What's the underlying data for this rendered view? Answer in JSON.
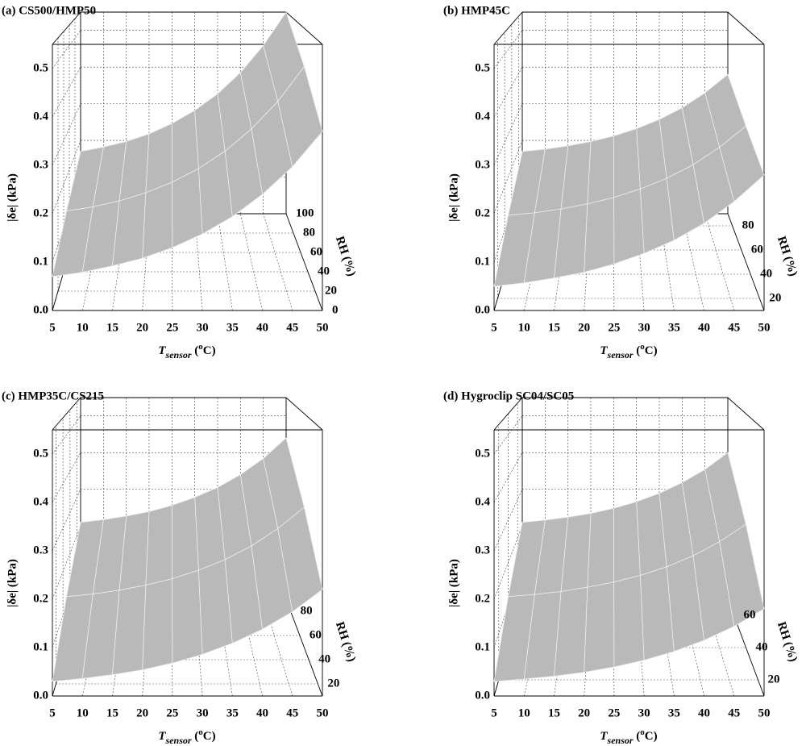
{
  "chart_data": [
    {
      "type": "surface",
      "title": "(a) CS500/HMP50",
      "z_label": "|δe| (kPa)",
      "y_label": "RH (%)",
      "x_label": [
        "T",
        "sensor",
        " (",
        "o",
        "C)"
      ],
      "x": [
        5,
        10,
        15,
        20,
        25,
        30,
        35,
        40,
        45,
        50
      ],
      "xlim": [
        5,
        50
      ],
      "xticks": [
        5,
        10,
        15,
        20,
        25,
        30,
        35,
        40,
        45,
        50
      ],
      "ylim": [
        0,
        100
      ],
      "yticks": [
        0,
        20,
        40,
        60,
        80,
        100
      ],
      "zlim": [
        0,
        0.55
      ],
      "zticks": [
        {
          "value": 0,
          "label": "0.0"
        },
        0.1,
        0.2,
        0.3,
        0.4,
        0.5
      ],
      "color": "#b9b9b9",
      "grid": true,
      "surface": [
        {
          "rh": 0,
          "values": [
            0.07,
            0.079,
            0.092,
            0.108,
            0.13,
            0.158,
            0.194,
            0.24,
            0.297,
            0.37
          ]
        },
        {
          "rh": 50,
          "values": [
            0.12,
            0.13,
            0.144,
            0.163,
            0.188,
            0.22,
            0.261,
            0.313,
            0.378,
            0.46
          ]
        },
        {
          "rh": 100,
          "values": [
            0.17,
            0.182,
            0.197,
            0.218,
            0.246,
            0.282,
            0.327,
            0.385,
            0.459,
            0.55
          ]
        }
      ]
    },
    {
      "type": "surface",
      "title": "(b) HMP45C",
      "z_label": "|δe| (kPa)",
      "y_label": "RH (%)",
      "x_label": [
        "T",
        "sensor",
        " (",
        "o",
        "C)"
      ],
      "x": [
        5,
        10,
        15,
        20,
        25,
        30,
        35,
        40,
        45,
        50
      ],
      "xlim": [
        5,
        50
      ],
      "xticks": [
        5,
        10,
        15,
        20,
        25,
        30,
        35,
        40,
        45,
        50
      ],
      "ylim": [
        10,
        90
      ],
      "yticks": [
        20,
        40,
        60,
        80
      ],
      "zlim": [
        0,
        0.55
      ],
      "zticks": [
        {
          "value": 0,
          "label": "0.0"
        },
        0.1,
        0.2,
        0.3,
        0.4,
        0.5
      ],
      "color": "#b9b9b9",
      "grid": true,
      "surface": [
        {
          "rh": 10,
          "values": [
            0.05,
            0.057,
            0.067,
            0.079,
            0.096,
            0.118,
            0.145,
            0.18,
            0.225,
            0.28
          ]
        },
        {
          "rh": 50,
          "values": [
            0.11,
            0.116,
            0.125,
            0.137,
            0.152,
            0.172,
            0.197,
            0.229,
            0.27,
            0.32
          ]
        },
        {
          "rh": 90,
          "values": [
            0.17,
            0.176,
            0.185,
            0.197,
            0.212,
            0.232,
            0.257,
            0.289,
            0.33,
            0.38
          ]
        }
      ]
    },
    {
      "type": "surface",
      "title": "(c) HMP35C/CS215",
      "z_label": "|δe| (kPa)",
      "y_label": "RH (%)",
      "x_label": [
        "T",
        "sensor",
        " (",
        "o",
        "C)"
      ],
      "x": [
        5,
        10,
        15,
        20,
        25,
        30,
        35,
        40,
        45,
        50
      ],
      "xlim": [
        5,
        50
      ],
      "xticks": [
        5,
        10,
        15,
        20,
        25,
        30,
        35,
        40,
        45,
        50
      ],
      "ylim": [
        10,
        90
      ],
      "yticks": [
        20,
        40,
        60,
        80
      ],
      "zlim": [
        0,
        0.55
      ],
      "zticks": [
        {
          "value": 0,
          "label": "0.0"
        },
        0.1,
        0.2,
        0.3,
        0.4,
        0.5
      ],
      "color": "#b9b9b9",
      "grid": true,
      "surface": [
        {
          "rh": 10,
          "values": [
            0.03,
            0.036,
            0.044,
            0.054,
            0.068,
            0.086,
            0.109,
            0.138,
            0.174,
            0.22
          ]
        },
        {
          "rh": 50,
          "values": [
            0.12,
            0.126,
            0.135,
            0.147,
            0.162,
            0.182,
            0.207,
            0.239,
            0.28,
            0.33
          ]
        },
        {
          "rh": 90,
          "values": [
            0.21,
            0.217,
            0.227,
            0.239,
            0.256,
            0.278,
            0.305,
            0.34,
            0.384,
            0.44
          ]
        }
      ]
    },
    {
      "type": "surface",
      "title": "(d) Hygroclip SC04/SC05",
      "z_label": "|δe| (kPa)",
      "y_label": "RH (%)",
      "x_label": [
        "T",
        "sensor",
        " (",
        "o",
        "C)"
      ],
      "x": [
        5,
        10,
        15,
        20,
        25,
        30,
        35,
        40,
        45,
        50
      ],
      "xlim": [
        5,
        50
      ],
      "xticks": [
        5,
        10,
        15,
        20,
        25,
        30,
        35,
        40,
        45,
        50
      ],
      "ylim": [
        10,
        70
      ],
      "yticks": [
        20,
        40,
        60
      ],
      "zlim": [
        0,
        0.55
      ],
      "zticks": [
        {
          "value": 0,
          "label": "0.0"
        },
        0.1,
        0.2,
        0.3,
        0.4,
        0.5
      ],
      "color": "#b9b9b9",
      "grid": true,
      "surface": [
        {
          "rh": 10,
          "values": [
            0.03,
            0.035,
            0.041,
            0.049,
            0.06,
            0.074,
            0.092,
            0.115,
            0.144,
            0.18
          ]
        },
        {
          "rh": 40,
          "values": [
            0.12,
            0.125,
            0.132,
            0.142,
            0.154,
            0.17,
            0.19,
            0.216,
            0.249,
            0.29
          ]
        },
        {
          "rh": 70,
          "values": [
            0.21,
            0.216,
            0.224,
            0.234,
            0.248,
            0.266,
            0.289,
            0.318,
            0.354,
            0.4
          ]
        }
      ]
    }
  ]
}
